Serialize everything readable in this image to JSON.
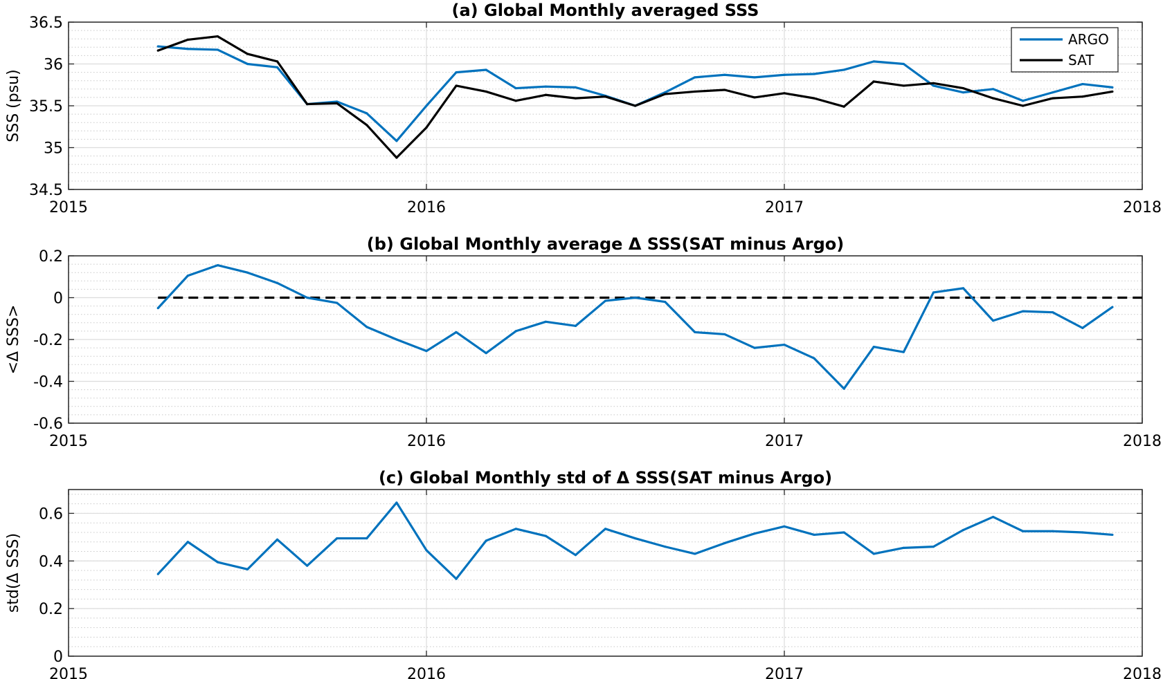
{
  "chart_data": [
    {
      "type": "line",
      "title": "(a) Global Monthly averaged SSS",
      "xlabel": "",
      "ylabel": "SSS (psu)",
      "xlim": [
        "2015",
        "2018"
      ],
      "ylim": [
        34.5,
        36.5
      ],
      "x_ticks": [
        "2015",
        "2016",
        "2017",
        "2018"
      ],
      "y_ticks": [
        "34.5",
        "35",
        "35.5",
        "36",
        "36.5"
      ],
      "grid": true,
      "legend": "top-right",
      "x": [
        "2015-04",
        "2015-05",
        "2015-06",
        "2015-07",
        "2015-08",
        "2015-09",
        "2015-10",
        "2015-11",
        "2015-12",
        "2016-01",
        "2016-02",
        "2016-03",
        "2016-04",
        "2016-05",
        "2016-06",
        "2016-07",
        "2016-08",
        "2016-09",
        "2016-10",
        "2016-11",
        "2016-12",
        "2017-01",
        "2017-02",
        "2017-03",
        "2017-04",
        "2017-05",
        "2017-06",
        "2017-07",
        "2017-08",
        "2017-09",
        "2017-10",
        "2017-11",
        "2017-12"
      ],
      "series": [
        {
          "name": "ARGO",
          "color": "#0072bd",
          "values": [
            36.21,
            36.18,
            36.17,
            36.0,
            35.96,
            35.52,
            35.55,
            35.41,
            35.08,
            35.5,
            35.9,
            35.93,
            35.71,
            35.73,
            35.72,
            35.62,
            35.5,
            35.66,
            35.84,
            35.87,
            35.84,
            35.87,
            35.88,
            35.93,
            36.03,
            36.0,
            35.74,
            35.66,
            35.7,
            35.56,
            35.66,
            35.76,
            35.72
          ]
        },
        {
          "name": "SAT",
          "color": "#000000",
          "values": [
            36.16,
            36.29,
            36.33,
            36.12,
            36.03,
            35.52,
            35.53,
            35.27,
            34.88,
            35.24,
            35.74,
            35.67,
            35.56,
            35.63,
            35.59,
            35.61,
            35.5,
            35.64,
            35.67,
            35.69,
            35.6,
            35.65,
            35.59,
            35.49,
            35.79,
            35.74,
            35.77,
            35.71,
            35.59,
            35.5,
            35.59,
            35.61,
            35.67
          ]
        }
      ]
    },
    {
      "type": "line",
      "title": "(b) Global Monthly average Δ SSS(SAT minus Argo)",
      "xlabel": "",
      "ylabel": "<Δ SSS>",
      "xlim": [
        "2015",
        "2018"
      ],
      "ylim": [
        -0.6,
        0.2
      ],
      "x_ticks": [
        "2015",
        "2016",
        "2017",
        "2018"
      ],
      "y_ticks": [
        "-0.6",
        "-0.4",
        "-0.2",
        "0",
        "0.2"
      ],
      "grid": true,
      "reference_line": {
        "y": 0,
        "style": "dashed",
        "color": "#000000"
      },
      "x": [
        "2015-04",
        "2015-05",
        "2015-06",
        "2015-07",
        "2015-08",
        "2015-09",
        "2015-10",
        "2015-11",
        "2015-12",
        "2016-01",
        "2016-02",
        "2016-03",
        "2016-04",
        "2016-05",
        "2016-06",
        "2016-07",
        "2016-08",
        "2016-09",
        "2016-10",
        "2016-11",
        "2016-12",
        "2017-01",
        "2017-02",
        "2017-03",
        "2017-04",
        "2017-05",
        "2017-06",
        "2017-07",
        "2017-08",
        "2017-09",
        "2017-10",
        "2017-11",
        "2017-12"
      ],
      "series": [
        {
          "name": "",
          "color": "#0072bd",
          "values": [
            -0.05,
            0.105,
            0.155,
            0.12,
            0.07,
            0.0,
            -0.025,
            -0.14,
            -0.2,
            -0.255,
            -0.165,
            -0.265,
            -0.16,
            -0.115,
            -0.135,
            -0.015,
            0.0,
            -0.02,
            -0.165,
            -0.175,
            -0.24,
            -0.225,
            -0.29,
            -0.435,
            -0.235,
            -0.26,
            0.025,
            0.045,
            -0.11,
            -0.065,
            -0.07,
            -0.145,
            -0.045
          ]
        }
      ]
    },
    {
      "type": "line",
      "title": "(c) Global Monthly std of Δ SSS(SAT minus Argo)",
      "xlabel": "",
      "ylabel": "std(Δ SSS)",
      "xlim": [
        "2015",
        "2018"
      ],
      "ylim": [
        0,
        0.7
      ],
      "x_ticks": [
        "2015",
        "2016",
        "2017",
        "2018"
      ],
      "y_ticks": [
        "0",
        "0.2",
        "0.4",
        "0.6"
      ],
      "grid": true,
      "x": [
        "2015-04",
        "2015-05",
        "2015-06",
        "2015-07",
        "2015-08",
        "2015-09",
        "2015-10",
        "2015-11",
        "2015-12",
        "2016-01",
        "2016-02",
        "2016-03",
        "2016-04",
        "2016-05",
        "2016-06",
        "2016-07",
        "2016-08",
        "2016-09",
        "2016-10",
        "2016-11",
        "2016-12",
        "2017-01",
        "2017-02",
        "2017-03",
        "2017-04",
        "2017-05",
        "2017-06",
        "2017-07",
        "2017-08",
        "2017-09",
        "2017-10",
        "2017-11",
        "2017-12"
      ],
      "series": [
        {
          "name": "",
          "color": "#0072bd",
          "values": [
            0.345,
            0.48,
            0.395,
            0.365,
            0.49,
            0.38,
            0.495,
            0.495,
            0.645,
            0.445,
            0.325,
            0.485,
            0.535,
            0.505,
            0.425,
            0.535,
            0.495,
            0.46,
            0.43,
            0.475,
            0.515,
            0.545,
            0.51,
            0.52,
            0.43,
            0.455,
            0.46,
            0.53,
            0.585,
            0.525,
            0.525,
            0.52,
            0.51
          ]
        }
      ]
    }
  ]
}
